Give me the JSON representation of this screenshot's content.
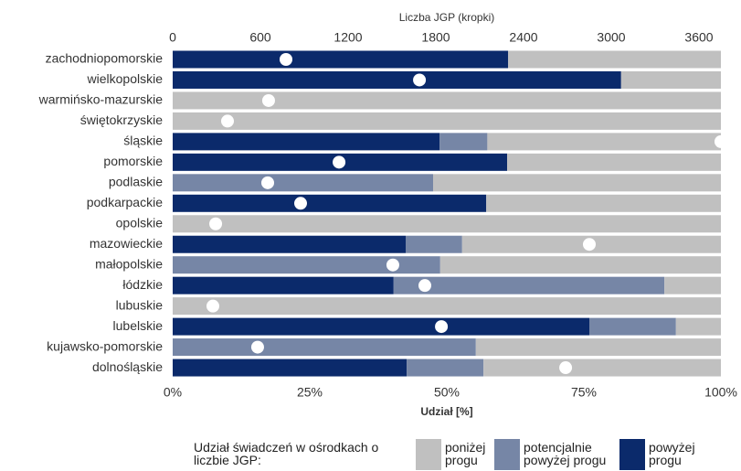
{
  "chart_data": {
    "type": "bar",
    "orientation": "horizontal",
    "stacked": true,
    "categories": [
      "zachodniopomorskie",
      "wielkopolskie",
      "warmińsko-mazurskie",
      "świętokrzyskie",
      "śląskie",
      "pomorskie",
      "podlaskie",
      "podkarpackie",
      "opolskie",
      "mazowieckie",
      "małopolskie",
      "łódzkie",
      "lubuskie",
      "lubelskie",
      "kujawsko-pomorskie",
      "dolnośląskie"
    ],
    "series": [
      {
        "name": "powyżej progu",
        "color": "#0b2a6b",
        "values": [
          61.2,
          81.8,
          0,
          0,
          48.7,
          61,
          0,
          57.2,
          0,
          42.5,
          0,
          40.3,
          0,
          76,
          0,
          42.7
        ]
      },
      {
        "name": "potencjalnie powyżej progu",
        "color": "#7686a6",
        "values": [
          0,
          0,
          0,
          0,
          8.7,
          0,
          47.5,
          0,
          0,
          10.3,
          48.8,
          49.4,
          0,
          15.8,
          55.3,
          14
        ]
      },
      {
        "name": "poniżej progu",
        "color": "#c0c0c0",
        "values": [
          38.8,
          18.2,
          100,
          100,
          42.6,
          39,
          52.5,
          42.8,
          100,
          47.2,
          51.2,
          10.3,
          100,
          8.2,
          44.7,
          43.3
        ]
      }
    ],
    "legend_title": "Udział świadczeń w ośrodkach o liczbie JGP:",
    "xlabel": "Udział [%]",
    "xlim": [
      0,
      100
    ],
    "xticks": [
      {
        "value": 0,
        "label": "0%"
      },
      {
        "value": 25,
        "label": "25%"
      },
      {
        "value": 50,
        "label": "50%"
      },
      {
        "value": 75,
        "label": "75%"
      },
      {
        "value": 100,
        "label": "100%"
      }
    ],
    "x2label": "Liczba JGP (kropki)",
    "x2lim": [
      0,
      3750
    ],
    "x2ticks": [
      0,
      600,
      1200,
      1800,
      2400,
      3000,
      3600
    ],
    "dots": {
      "color": "#ffffff",
      "values": [
        775,
        1688,
        656,
        375,
        3750,
        1138,
        650,
        875,
        294,
        2850,
        1506,
        1725,
        275,
        1838,
        581,
        2688
      ]
    }
  }
}
